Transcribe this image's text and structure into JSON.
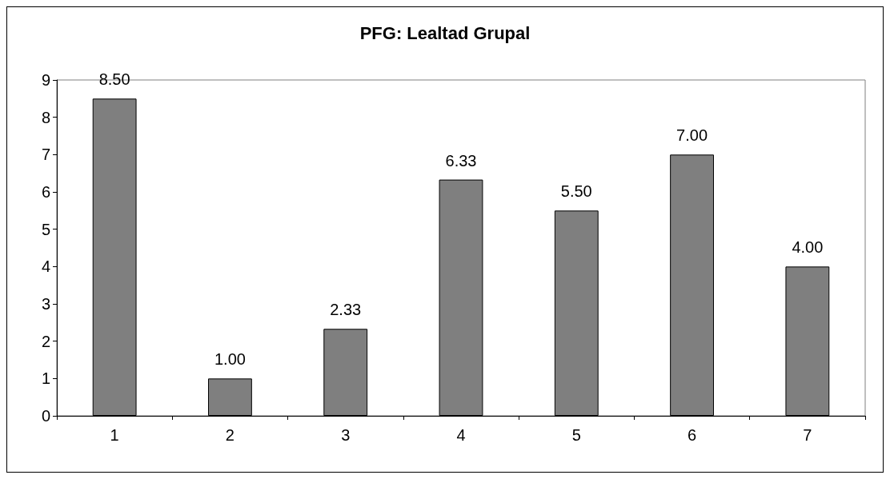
{
  "chart_data": {
    "type": "bar",
    "title": "PFG: Lealtad Grupal",
    "categories": [
      "1",
      "2",
      "3",
      "4",
      "5",
      "6",
      "7"
    ],
    "values": [
      8.5,
      1,
      2.33,
      6.33,
      5.5,
      7,
      4
    ],
    "value_labels": [
      "8.50",
      "1.00",
      "2.33",
      "6.33",
      "5.50",
      "7.00",
      "4.00"
    ],
    "color": "#7f7f7f",
    "ylim": [
      0,
      9
    ],
    "yticks": [
      0,
      1,
      2,
      3,
      4,
      5,
      6,
      7,
      8,
      9
    ],
    "grid": false
  }
}
